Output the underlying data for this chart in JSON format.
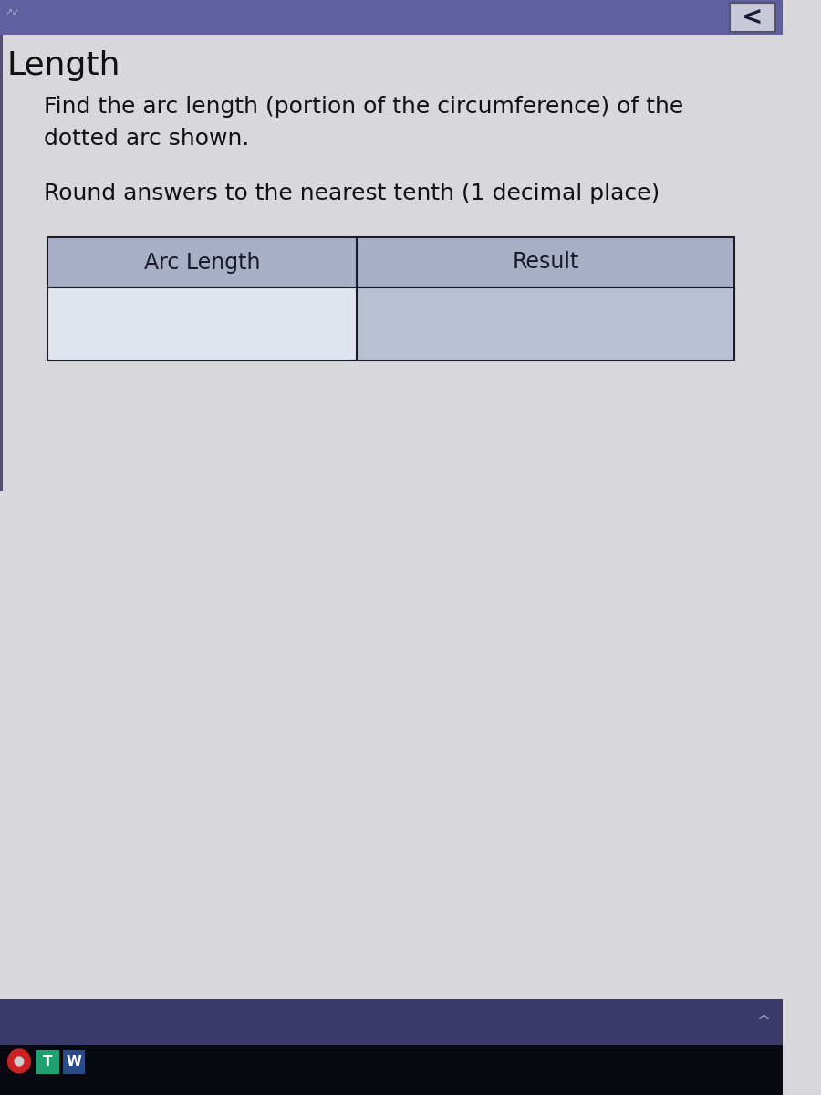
{
  "content_bg": "#d8d8dc",
  "title": "Length",
  "title_fontsize": 26,
  "title_color": "#111111",
  "instruction_line1": "Find the arc length (portion of the circumference) of the",
  "instruction_line2": "dotted arc shown.",
  "instruction_fontsize": 18,
  "instruction_color": "#111111",
  "round_text": "Round answers to the nearest tenth (1 decimal place)",
  "round_fontsize": 18,
  "round_color": "#111111",
  "table_header_bg": "#a8b0c8",
  "table_row_left_bg": "#e0e4ec",
  "table_row_right_bg": "#b8c0d4",
  "table_col1_header": "Arc Length",
  "table_col2_header": "Result",
  "table_header_fontsize": 17,
  "table_text_color": "#1a1a2a",
  "table_border_color": "#1a1a2a",
  "top_bar_color": "#6060a0",
  "arrow_btn_bg": "#c8c8d8",
  "arrow_color": "#1a1a3a",
  "bottom_bar_color": "#3a3a6a",
  "taskbar_color": "#080810"
}
